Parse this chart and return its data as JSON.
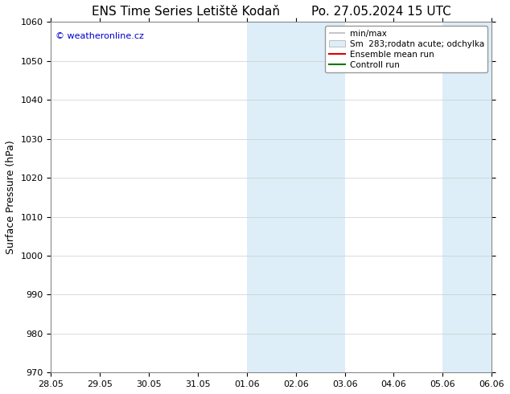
{
  "title_left": "ENS Time Series Letiště Kodaň",
  "title_right": "Po. 27.05.2024 15 UTC",
  "ylabel": "Surface Pressure (hPa)",
  "ylim": [
    970,
    1060
  ],
  "yticks": [
    970,
    980,
    990,
    1000,
    1010,
    1020,
    1030,
    1040,
    1050,
    1060
  ],
  "xtick_labels": [
    "28.05",
    "29.05",
    "30.05",
    "31.05",
    "01.06",
    "02.06",
    "03.06",
    "04.06",
    "05.06",
    "06.06"
  ],
  "xtick_positions": [
    0,
    1,
    2,
    3,
    4,
    5,
    6,
    7,
    8,
    9
  ],
  "shaded_regions": [
    {
      "x_start": 4,
      "x_end": 6,
      "color": "#ddeef8"
    },
    {
      "x_start": 8,
      "x_end": 9,
      "color": "#ddeef8"
    }
  ],
  "watermark_text": "© weatheronline.cz",
  "watermark_color": "#0000cc",
  "legend_items": [
    {
      "label": "min/max",
      "color": "#bbbbbb",
      "lw": 1.5,
      "type": "line"
    },
    {
      "label": "Sm  283;rodatn acute; odchylka",
      "color": "#ddeef8",
      "lw": 6,
      "type": "patch"
    },
    {
      "label": "Ensemble mean run",
      "color": "#dd0000",
      "lw": 1.5,
      "type": "line"
    },
    {
      "label": "Controll run",
      "color": "#007700",
      "lw": 1.5,
      "type": "line"
    }
  ],
  "background_color": "#ffffff",
  "plot_bg_color": "#ffffff",
  "grid_color": "#cccccc",
  "title_fontsize": 11,
  "tick_fontsize": 8,
  "ylabel_fontsize": 9,
  "watermark_fontsize": 8,
  "legend_fontsize": 7.5
}
